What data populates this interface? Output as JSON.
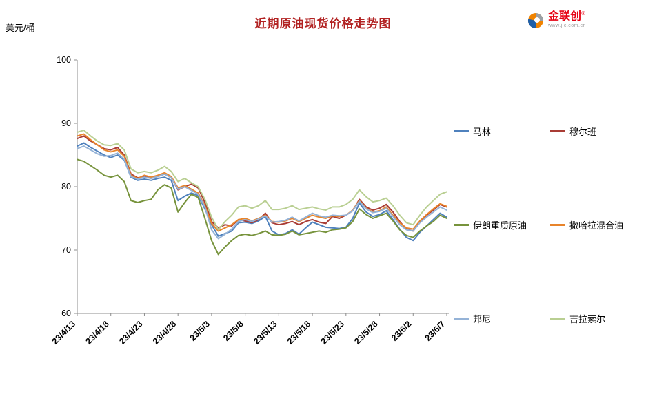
{
  "page": {
    "title": "近期原油现货价格走势图",
    "y_axis_unit": "美元/桶"
  },
  "logo": {
    "name": "金联创",
    "mark": "®",
    "subtext": "www.jlc.com.cn"
  },
  "chart_data": {
    "type": "line",
    "title": "近期原油现货价格走势图",
    "ylabel": "美元/桶",
    "xlabel": "",
    "ylim": [
      60,
      100
    ],
    "y_ticks": [
      60,
      70,
      80,
      90,
      100
    ],
    "grid": false,
    "legend_position": "right",
    "x_tick_labels": [
      "23/4/13",
      "23/4/18",
      "23/4/23",
      "23/4/28",
      "23/5/3",
      "23/5/8",
      "23/5/13",
      "23/5/18",
      "23/5/23",
      "23/5/28",
      "23/6/2",
      "23/6/7"
    ],
    "x": [
      "23/4/13",
      "23/4/14",
      "23/4/15",
      "23/4/16",
      "23/4/17",
      "23/4/18",
      "23/4/19",
      "23/4/20",
      "23/4/21",
      "23/4/22",
      "23/4/23",
      "23/4/24",
      "23/4/25",
      "23/4/26",
      "23/4/27",
      "23/4/28",
      "23/4/29",
      "23/4/30",
      "23/5/1",
      "23/5/2",
      "23/5/3",
      "23/5/4",
      "23/5/5",
      "23/5/6",
      "23/5/7",
      "23/5/8",
      "23/5/9",
      "23/5/10",
      "23/5/11",
      "23/5/12",
      "23/5/13",
      "23/5/14",
      "23/5/15",
      "23/5/16",
      "23/5/17",
      "23/5/18",
      "23/5/19",
      "23/5/20",
      "23/5/21",
      "23/5/22",
      "23/5/23",
      "23/5/24",
      "23/5/25",
      "23/5/26",
      "23/5/27",
      "23/5/28",
      "23/5/29",
      "23/5/30",
      "23/5/31",
      "23/6/1",
      "23/6/2",
      "23/6/3",
      "23/6/4",
      "23/6/5",
      "23/6/6",
      "23/6/7"
    ],
    "series": [
      {
        "name": "马林",
        "color": "#4f81bd",
        "values": [
          86.4,
          86.9,
          86.2,
          85.6,
          85.0,
          84.6,
          85.0,
          84.2,
          81.5,
          81.0,
          81.2,
          81.0,
          81.3,
          81.5,
          81.0,
          77.8,
          78.5,
          79.0,
          78.6,
          76.5,
          74.0,
          72.2,
          72.6,
          73.0,
          74.3,
          74.4,
          74.2,
          74.6,
          75.3,
          73.0,
          72.4,
          72.6,
          73.2,
          72.5,
          73.5,
          74.4,
          74.0,
          73.6,
          73.5,
          73.4,
          73.6,
          75.0,
          77.4,
          76.0,
          75.3,
          75.6,
          76.2,
          74.8,
          73.3,
          72.0,
          71.5,
          72.8,
          73.8,
          74.8,
          75.8,
          75.2
        ]
      },
      {
        "name": "穆尔班",
        "color": "#a93c35",
        "values": [
          87.6,
          88.0,
          87.2,
          86.6,
          86.0,
          85.8,
          86.2,
          85.0,
          82.0,
          81.4,
          81.6,
          81.3,
          81.6,
          82.0,
          81.4,
          79.5,
          80.0,
          80.4,
          79.8,
          77.5,
          74.5,
          73.5,
          74.0,
          73.8,
          74.8,
          74.6,
          74.3,
          74.8,
          75.8,
          74.3,
          74.0,
          74.2,
          74.5,
          74.0,
          74.5,
          74.8,
          74.4,
          74.2,
          75.3,
          75.0,
          75.5,
          76.2,
          78.0,
          76.8,
          76.3,
          76.6,
          77.2,
          76.0,
          74.5,
          73.3,
          73.0,
          74.5,
          75.5,
          76.3,
          77.2,
          76.8
        ]
      },
      {
        "name": "伊朗重质原油",
        "color": "#77933c",
        "values": [
          84.3,
          84.0,
          83.3,
          82.6,
          81.8,
          81.5,
          81.8,
          80.8,
          77.8,
          77.5,
          77.8,
          78.0,
          79.5,
          80.3,
          79.8,
          76.0,
          77.5,
          78.8,
          78.3,
          75.0,
          71.5,
          69.3,
          70.5,
          71.5,
          72.3,
          72.5,
          72.3,
          72.6,
          73.0,
          72.4,
          72.3,
          72.5,
          73.0,
          72.4,
          72.6,
          72.8,
          73.0,
          72.8,
          73.2,
          73.3,
          73.5,
          74.5,
          76.5,
          75.6,
          75.0,
          75.4,
          75.8,
          74.6,
          73.2,
          72.3,
          72.0,
          73.0,
          73.8,
          74.5,
          75.5,
          75.0
        ]
      },
      {
        "name": "撒哈拉混合油",
        "color": "#e8842b",
        "values": [
          88.0,
          88.3,
          87.4,
          86.6,
          85.8,
          85.5,
          85.8,
          84.8,
          81.8,
          81.3,
          81.8,
          81.5,
          81.8,
          82.2,
          81.6,
          79.8,
          80.2,
          79.6,
          79.0,
          77.0,
          74.2,
          73.0,
          73.5,
          74.0,
          74.8,
          75.0,
          74.6,
          75.0,
          75.5,
          74.5,
          74.4,
          74.6,
          75.0,
          74.5,
          75.0,
          75.5,
          75.2,
          75.0,
          75.4,
          75.3,
          75.5,
          76.3,
          77.8,
          76.6,
          76.0,
          76.2,
          76.8,
          75.5,
          74.3,
          73.5,
          73.3,
          74.6,
          75.6,
          76.5,
          77.3,
          76.9
        ]
      },
      {
        "name": "邦尼",
        "color": "#95b3d7",
        "values": [
          86.0,
          86.4,
          85.8,
          85.2,
          84.8,
          84.9,
          85.3,
          84.3,
          81.6,
          81.2,
          81.5,
          81.3,
          81.6,
          82.0,
          81.4,
          79.6,
          80.0,
          79.4,
          78.8,
          76.8,
          73.2,
          71.8,
          72.5,
          73.3,
          74.5,
          74.8,
          74.5,
          74.9,
          75.4,
          74.4,
          74.5,
          74.7,
          75.2,
          74.6,
          75.2,
          75.8,
          75.4,
          75.2,
          75.5,
          75.4,
          75.5,
          76.2,
          77.7,
          76.5,
          75.9,
          76.1,
          76.6,
          75.3,
          74.0,
          73.2,
          73.0,
          74.3,
          75.2,
          76.0,
          76.8,
          76.3
        ]
      },
      {
        "name": "吉拉索尔",
        "color": "#b9cf92",
        "values": [
          88.6,
          88.9,
          88.0,
          87.2,
          86.6,
          86.5,
          86.8,
          85.8,
          82.8,
          82.2,
          82.4,
          82.2,
          82.6,
          83.2,
          82.4,
          80.8,
          81.3,
          80.6,
          80.0,
          78.0,
          75.2,
          73.2,
          74.5,
          75.5,
          76.8,
          77.0,
          76.6,
          77.0,
          77.8,
          76.4,
          76.4,
          76.6,
          77.0,
          76.4,
          76.6,
          76.8,
          76.5,
          76.3,
          76.8,
          76.8,
          77.2,
          78.0,
          79.5,
          78.4,
          77.6,
          77.8,
          78.2,
          77.0,
          75.5,
          74.3,
          74.0,
          75.5,
          76.8,
          77.8,
          78.8,
          79.2
        ]
      }
    ]
  }
}
